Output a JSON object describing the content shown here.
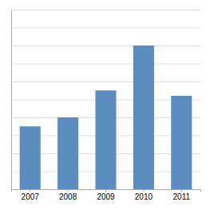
{
  "chart_data": {
    "type": "bar",
    "categories": [
      "2007",
      "2008",
      "2009",
      "2010",
      "2011"
    ],
    "values": [
      3.5,
      4.0,
      5.5,
      8.0,
      5.2
    ],
    "color": "#5b8dc0",
    "ylim": [
      0,
      10
    ],
    "yticks": [
      0,
      1,
      2,
      3,
      4,
      5,
      6,
      7,
      8,
      9,
      10
    ],
    "grid": true,
    "tick_labels": "x"
  }
}
